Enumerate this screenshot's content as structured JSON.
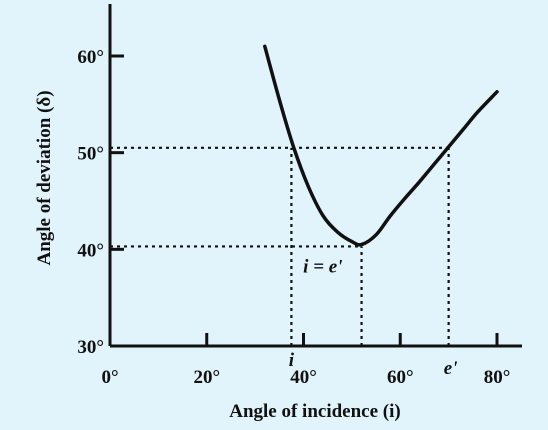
{
  "chart_data": {
    "type": "line",
    "title": "",
    "xlabel": "Angle of incidence (i)",
    "ylabel": "Angle of deviation (δ)",
    "xlim": [
      0,
      80
    ],
    "ylim": [
      30,
      65
    ],
    "x_ticks": [
      {
        "value": 0,
        "label": "0°"
      },
      {
        "value": 20,
        "label": "20°"
      },
      {
        "value": 40,
        "label": "40°"
      },
      {
        "value": 60,
        "label": "60°"
      },
      {
        "value": 80,
        "label": "80°"
      }
    ],
    "y_ticks": [
      {
        "value": 30,
        "label": "30°"
      },
      {
        "value": 40,
        "label": "40°"
      },
      {
        "value": 50,
        "label": "50°"
      },
      {
        "value": 60,
        "label": "60°"
      }
    ],
    "series": [
      {
        "x": [
          32,
          35,
          38,
          41,
          44,
          47,
          50,
          52,
          55,
          58,
          61,
          64,
          67,
          70,
          73,
          76,
          80
        ],
        "y": [
          61,
          55.5,
          50.5,
          46.5,
          43.5,
          41.8,
          40.8,
          40.5,
          41.5,
          43.5,
          45.3,
          47,
          48.8,
          50.6,
          52.4,
          54.2,
          56.3
        ]
      }
    ],
    "guides": [
      {
        "from": [
          0,
          50.5
        ],
        "to": [
          70,
          50.5
        ]
      },
      {
        "from": [
          0,
          40.3
        ],
        "to": [
          52,
          40.3
        ]
      },
      {
        "from": [
          37.5,
          30
        ],
        "to": [
          37.5,
          50.5
        ]
      },
      {
        "from": [
          52,
          30
        ],
        "to": [
          52,
          40.3
        ]
      },
      {
        "from": [
          70,
          30
        ],
        "to": [
          70,
          50.5
        ]
      }
    ],
    "annotations": [
      {
        "text": "i",
        "x": 37.5,
        "y": 30
      },
      {
        "text": "e'",
        "x": 70,
        "y": 30
      },
      {
        "text": "i = e'",
        "x": 44,
        "y": 40.3
      }
    ]
  }
}
